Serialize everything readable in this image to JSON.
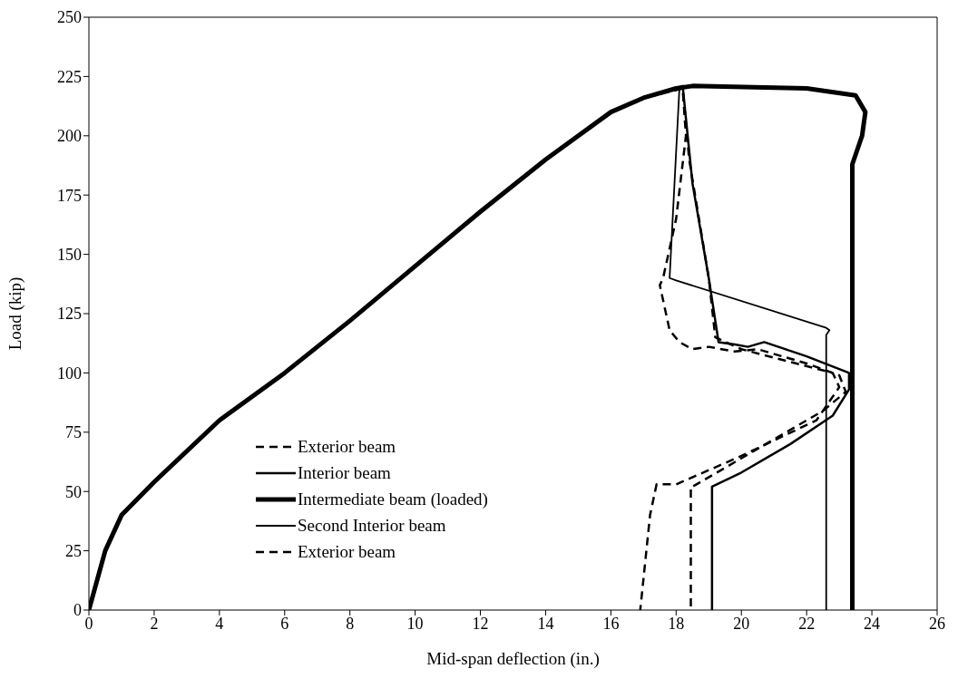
{
  "chart_data": {
    "type": "line",
    "xlabel": "Mid-span deflection (in.)",
    "ylabel": "Load (kip)",
    "xlim": [
      0,
      26
    ],
    "ylim": [
      0,
      250
    ],
    "xticks": [
      0,
      2,
      4,
      6,
      8,
      10,
      12,
      14,
      16,
      18,
      20,
      22,
      24,
      26
    ],
    "yticks": [
      0,
      25,
      50,
      75,
      100,
      125,
      150,
      175,
      200,
      225,
      250
    ],
    "grid": false,
    "legend": "bottom left",
    "marker": "none",
    "series": [
      {
        "name": "Exterior beam",
        "color": "#000000",
        "line_style": "dashed",
        "x": [
          0,
          0.5,
          1,
          1.5,
          2,
          4,
          6,
          8,
          10,
          12,
          14,
          16,
          17,
          18.2,
          18.3,
          18.0,
          17.6,
          17.5,
          17.8,
          18.1,
          18.5,
          19,
          19.8,
          20.5,
          22,
          23,
          23.2,
          22.5,
          21,
          19.5,
          18.5,
          18.45,
          18.45
        ],
        "values": [
          0,
          25,
          40,
          47,
          54,
          80,
          100,
          122,
          145,
          168,
          190,
          210,
          216,
          220,
          200,
          165,
          140,
          137,
          118,
          113,
          110,
          111,
          109,
          110,
          104,
          99,
          92,
          84,
          72,
          60,
          52,
          52,
          0
        ]
      },
      {
        "name": "Interior beam",
        "color": "#000000",
        "line_style": "solid",
        "x": [
          0,
          0.5,
          1,
          1.5,
          2,
          4,
          6,
          8,
          10,
          12,
          14,
          16,
          17,
          18.2,
          18.5,
          19,
          19.3,
          19.8,
          20.2,
          20.7,
          22,
          23.3,
          23.3,
          22.8,
          21.5,
          20,
          19.1,
          19.1
        ],
        "values": [
          0,
          25,
          40,
          47,
          54,
          80,
          100,
          122,
          145,
          168,
          190,
          210,
          216,
          221,
          180,
          140,
          113,
          112,
          111,
          113,
          107,
          100,
          93,
          82,
          70,
          58,
          52,
          0
        ]
      },
      {
        "name": "Intermediate beam (loaded)",
        "color": "#000000",
        "line_style": "solid",
        "x": [
          0,
          0.5,
          1,
          1.5,
          2,
          4,
          6,
          8,
          10,
          12,
          14,
          16,
          17,
          18,
          18.5,
          22,
          23.5,
          23.8,
          23.7,
          23.4,
          23.4
        ],
        "values": [
          0,
          25,
          40,
          47,
          54,
          80,
          100,
          122,
          145,
          168,
          190,
          210,
          216,
          220,
          221,
          220,
          217,
          210,
          200,
          188,
          0
        ]
      },
      {
        "name": "Second Interior beam",
        "color": "#000000",
        "line_style": "solid",
        "x": [
          0,
          0.5,
          1,
          1.5,
          2,
          4,
          6,
          8,
          10,
          12,
          14,
          16,
          17,
          18.1,
          17.8,
          18,
          22.6,
          22.7,
          22.6,
          22.6
        ],
        "values": [
          0,
          25,
          40,
          47,
          54,
          80,
          100,
          122,
          145,
          168,
          190,
          210,
          216,
          220,
          140,
          139,
          119,
          118,
          116,
          0
        ]
      },
      {
        "name": "Exterior beam",
        "color": "#000000",
        "line_style": "dashed",
        "x": [
          0,
          0.5,
          1,
          1.5,
          2,
          4,
          6,
          8,
          10,
          12,
          14,
          16,
          17,
          18.2,
          18.4,
          19,
          19.2,
          20,
          22.8,
          23.0,
          22.3,
          20,
          18,
          17.4,
          17.2,
          16.9
        ],
        "values": [
          0,
          25,
          40,
          47,
          54,
          80,
          100,
          122,
          145,
          168,
          190,
          210,
          216,
          220,
          190,
          140,
          115,
          110,
          100,
          94,
          80,
          65,
          53,
          53,
          40,
          0
        ]
      }
    ]
  }
}
